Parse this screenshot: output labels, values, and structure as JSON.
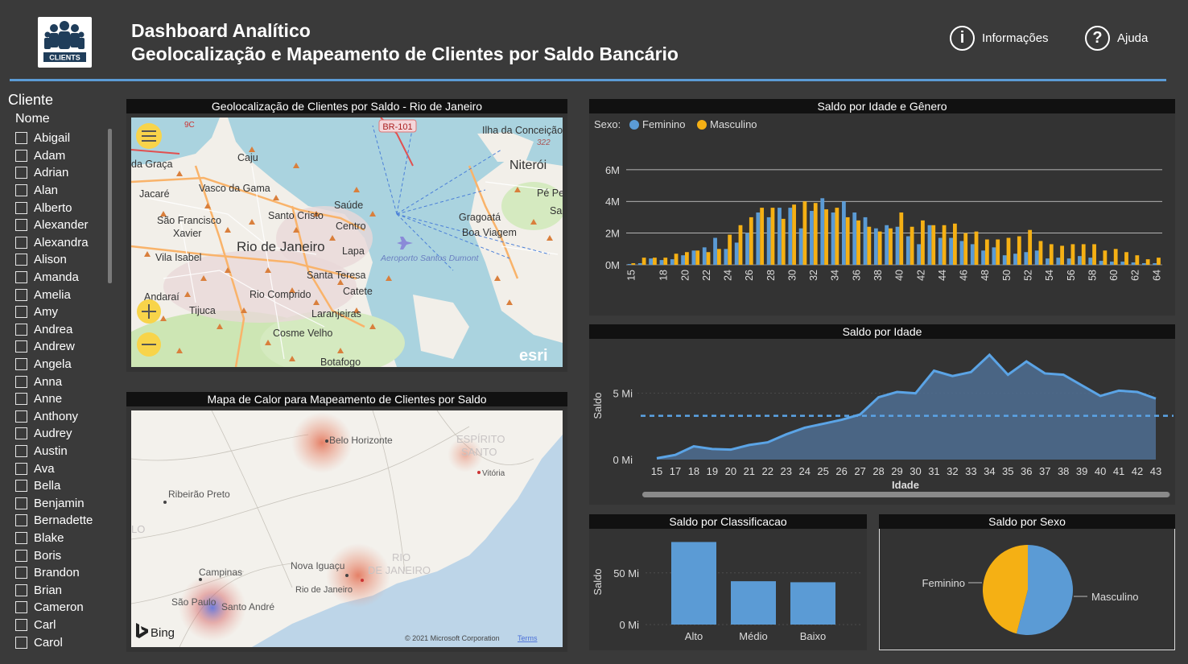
{
  "header": {
    "title_line1": "Dashboard Analítico",
    "title_line2": "Geolocalização e Mapeamento de Clientes por Saldo Bancário",
    "logo_text": "CLIENTS",
    "buttons": [
      {
        "label": "Informações",
        "icon": "info-icon"
      },
      {
        "label": "Ajuda",
        "icon": "help-icon"
      }
    ]
  },
  "slicer": {
    "title": "Cliente",
    "field": "Nome",
    "items": [
      "Abigail",
      "Adam",
      "Adrian",
      "Alan",
      "Alberto",
      "Alexander",
      "Alexandra",
      "Alison",
      "Amanda",
      "Amelia",
      "Amy",
      "Andrea",
      "Andrew",
      "Angela",
      "Anna",
      "Anne",
      "Anthony",
      "Audrey",
      "Austin",
      "Ava",
      "Bella",
      "Benjamin",
      "Bernadette",
      "Blake",
      "Boris",
      "Brandon",
      "Brian",
      "Cameron",
      "Carl",
      "Carol"
    ]
  },
  "map1": {
    "title": "Geolocalização de Clientes por Saldo - Rio de Janeiro",
    "labels": [
      "BR-101",
      "Ilha da Conceição",
      "Caju",
      "da Graça",
      "Vasco da Gama",
      "Jacaré",
      "Niterói",
      "Pé Pe",
      "Saúde",
      "Santo Cristo",
      "São Francisco",
      "Xavier",
      "Centro",
      "Gragoatá",
      "Boa Viagem",
      "Rio de Janeiro",
      "Vila Isabel",
      "Lapa",
      "Aeroporto Santos Dumont",
      "Santa Teresa",
      "Andaraí",
      "Rio Comprido",
      "Catete",
      "Tijuca",
      "Laranjeiras",
      "Cosme Velho",
      "Botafogo",
      "9C",
      "322",
      "Sa"
    ],
    "brand": "esri",
    "colors": {
      "water": "#aad3df",
      "land": "#f2efe9",
      "marker": "#d97f3c"
    }
  },
  "map2": {
    "title": "Mapa de Calor para Mapeamento de Clientes por Saldo",
    "labels": [
      "Belo Horizonte",
      "ESPÍRITO",
      "SANTO",
      "Vitória",
      "Ribeirão Preto",
      "LO",
      "Campinas",
      "Nova Iguaçu",
      "RIO",
      "DE JANEIRO",
      "Rio de Janeiro",
      "São Paulo",
      "Santo André"
    ],
    "brand": "Bing",
    "copyright": "© 2021 Microsoft Corporation",
    "terms": "Terms"
  },
  "chart_data": [
    {
      "type": "bar",
      "title": "Saldo por Idade e Gênero",
      "legend_title": "Sexo:",
      "legend_position": "top-left",
      "x": [
        15,
        16,
        17,
        18,
        19,
        20,
        21,
        22,
        23,
        24,
        25,
        26,
        27,
        28,
        29,
        30,
        31,
        32,
        33,
        34,
        35,
        36,
        37,
        38,
        39,
        40,
        41,
        42,
        43,
        44,
        45,
        46,
        47,
        48,
        49,
        50,
        51,
        52,
        53,
        54,
        55,
        56,
        57,
        58,
        59,
        60,
        61,
        62,
        63,
        64
      ],
      "x_tick_labels": [
        "15",
        "18",
        "20",
        "22",
        "24",
        "26",
        "28",
        "30",
        "32",
        "34",
        "36",
        "38",
        "40",
        "42",
        "44",
        "46",
        "48",
        "50",
        "52",
        "54",
        "56",
        "58",
        "60",
        "62",
        "64"
      ],
      "y_ticks": [
        "0M",
        "2M",
        "4M",
        "6M"
      ],
      "ylim": [
        0,
        6.5
      ],
      "grid": true,
      "series": [
        {
          "name": "Feminino",
          "color": "#5b9bd5",
          "values": [
            0.05,
            0.1,
            0.4,
            0.3,
            0.35,
            0.6,
            0.9,
            1.1,
            1.7,
            1.0,
            1.4,
            2.0,
            3.3,
            3.0,
            3.6,
            3.6,
            2.3,
            3.4,
            4.2,
            3.3,
            4.0,
            3.3,
            3.0,
            2.3,
            2.5,
            2.4,
            1.8,
            1.3,
            2.5,
            1.7,
            1.7,
            1.5,
            1.3,
            0.9,
            1.1,
            0.6,
            0.7,
            0.8,
            0.9,
            0.4,
            0.45,
            0.4,
            0.55,
            0.45,
            0.25,
            0.2,
            0.2,
            0.15,
            0.1,
            0.1
          ]
        },
        {
          "name": "Masculino",
          "color": "#f5b014",
          "values": [
            0.1,
            0.45,
            0.45,
            0.45,
            0.7,
            0.8,
            0.9,
            0.8,
            1.0,
            1.9,
            2.5,
            3.0,
            3.6,
            3.6,
            2.9,
            3.8,
            4.0,
            3.9,
            3.5,
            3.6,
            3.0,
            2.8,
            2.4,
            2.1,
            2.3,
            3.3,
            2.4,
            2.8,
            2.5,
            2.5,
            2.6,
            2.0,
            2.1,
            1.6,
            1.6,
            1.7,
            1.8,
            2.2,
            1.5,
            1.3,
            1.2,
            1.3,
            1.3,
            1.3,
            0.9,
            1.0,
            0.8,
            0.6,
            0.35,
            0.45
          ]
        }
      ]
    },
    {
      "type": "area",
      "title": "Saldo por Idade",
      "xlabel": "Idade",
      "ylabel": "Saldo",
      "categories": [
        "15",
        "17",
        "18",
        "19",
        "20",
        "21",
        "22",
        "23",
        "24",
        "25",
        "26",
        "27",
        "28",
        "29",
        "30",
        "31",
        "32",
        "33",
        "34",
        "35",
        "36",
        "37",
        "38",
        "39",
        "40",
        "41",
        "42",
        "43"
      ],
      "values": [
        0.1,
        0.35,
        1.0,
        0.8,
        0.75,
        1.1,
        1.3,
        1.9,
        2.4,
        2.7,
        3.0,
        3.4,
        4.7,
        5.1,
        5.0,
        6.7,
        6.3,
        6.6,
        7.9,
        6.4,
        7.4,
        6.5,
        6.4,
        5.6,
        4.8,
        5.2,
        5.1,
        4.6
      ],
      "y_ticks": [
        "0 Mi",
        "5 Mi"
      ],
      "ylim": [
        0,
        8.5
      ],
      "average_line": 3.3,
      "color": "#5b9bd5"
    },
    {
      "type": "bar",
      "title": "Saldo por Classificacao",
      "ylabel": "Saldo",
      "categories": [
        "Alto",
        "Médio",
        "Baixo"
      ],
      "values": [
        80,
        42,
        41
      ],
      "y_ticks": [
        "0 Mi",
        "50 Mi"
      ],
      "ylim": [
        0,
        85
      ],
      "color": "#5b9bd5"
    },
    {
      "type": "pie",
      "title": "Saldo por Sexo",
      "labels": [
        "Feminino",
        "Masculino"
      ],
      "values": [
        46,
        54
      ],
      "colors": [
        "#f5b014",
        "#5b9bd5"
      ]
    }
  ]
}
